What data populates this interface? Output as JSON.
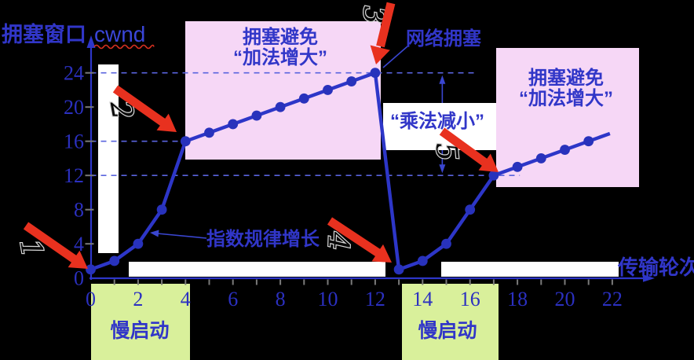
{
  "figure": {
    "y_axis_title": "拥塞窗口",
    "y_axis_unit": "cwnd",
    "x_axis_title": "传输轮次"
  },
  "annotations": {
    "congestion_avoidance": "拥塞避免",
    "additive_increase": "“加法增大”",
    "slow_start": "慢启动",
    "network_congestion": "网络拥塞",
    "multiplicative_decrease": "“乘法减小”",
    "exponential_growth": "指数规律增长",
    "steps": [
      "1",
      "2",
      "3",
      "4",
      "5"
    ]
  },
  "chart_data": {
    "type": "line",
    "xlabel": "传输轮次",
    "ylabel": "拥塞窗口 cwnd",
    "x_ticks": [
      0,
      2,
      4,
      6,
      8,
      10,
      12,
      14,
      16,
      18,
      20,
      22
    ],
    "x_minor_ticks_every": 1,
    "y_ticks": [
      0,
      4,
      8,
      12,
      16,
      20,
      24
    ],
    "xlim": [
      0,
      23.8
    ],
    "ylim": [
      0,
      28
    ],
    "legend": "none",
    "grid": "dashed horizontal reference lines at cwnd 24, 16 and 12",
    "series": [
      {
        "name": "cwnd",
        "points": [
          [
            0,
            1
          ],
          [
            1,
            2
          ],
          [
            2,
            4
          ],
          [
            3,
            8
          ],
          [
            4,
            16
          ],
          [
            5,
            17
          ],
          [
            6,
            18
          ],
          [
            7,
            19
          ],
          [
            8,
            20
          ],
          [
            9,
            21
          ],
          [
            10,
            22
          ],
          [
            11,
            23
          ],
          [
            12,
            24
          ],
          [
            13,
            1
          ],
          [
            14,
            2
          ],
          [
            15,
            4
          ],
          [
            16,
            8
          ],
          [
            17,
            12
          ],
          [
            18,
            13
          ],
          [
            19,
            14
          ],
          [
            20,
            15
          ],
          [
            21,
            16
          ]
        ],
        "line_extends_to": [
          21.9,
          16.9
        ]
      }
    ],
    "dashed_reference_lines": [
      {
        "y": 24,
        "x_from": 0,
        "x_to": 16.2
      },
      {
        "y": 16,
        "x_from": 0,
        "x_to": 4
      },
      {
        "y": 12,
        "x_from": 0,
        "x_to": 18.1
      }
    ],
    "drop_indicator": {
      "x": 14.83,
      "y_from": 24,
      "y_to": 12
    },
    "phases": [
      {
        "label": "慢启动",
        "x_from": 0,
        "x_to": 4.2
      },
      {
        "label": "拥塞避免 “加法增大”",
        "x_from": 4,
        "x_to": 12
      },
      {
        "label": "慢启动",
        "x_from": 13.1,
        "x_to": 17.2
      },
      {
        "label": "拥塞避免 “加法增大”",
        "x_from": 17,
        "x_to": 22
      }
    ]
  },
  "colors": {
    "background": "#000000",
    "curve_blue": "#2d36c8",
    "text_blue": "#3136c8",
    "dashed_blue": "#5a64de",
    "arrow_red": "#e8311f",
    "phase_pink": "#f6d7f6",
    "phase_green": "#d9f09b",
    "white_panel": "#ffffff"
  }
}
